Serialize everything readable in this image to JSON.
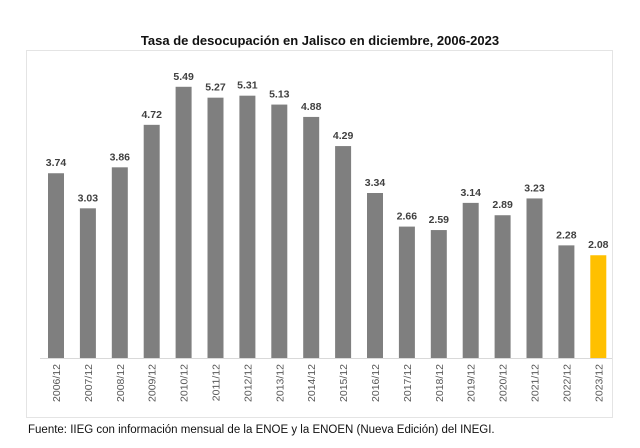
{
  "chart_data": {
    "type": "bar",
    "title": "Tasa de desocupación en Jalisco en diciembre, 2006-2023",
    "xlabel": "",
    "ylabel": "",
    "ylim": [
      0,
      5.8
    ],
    "grid": false,
    "categories": [
      "2006/12",
      "2007/12",
      "2008/12",
      "2009/12",
      "2010/12",
      "2011/12",
      "2012/12",
      "2013/12",
      "2014/12",
      "2015/12",
      "2016/12",
      "2017/12",
      "2018/12",
      "2019/12",
      "2020/12",
      "2021/12",
      "2022/12",
      "2023/12"
    ],
    "values": [
      3.74,
      3.03,
      3.86,
      4.72,
      5.49,
      5.27,
      5.31,
      5.13,
      4.88,
      4.29,
      3.34,
      2.66,
      2.59,
      3.14,
      2.89,
      3.23,
      2.28,
      2.08
    ],
    "data_labels": [
      "3.74",
      "3.03",
      "3.86",
      "4.72",
      "5.49",
      "5.27",
      "5.31",
      "5.13",
      "4.88",
      "4.29",
      "3.34",
      "2.66",
      "2.59",
      "3.14",
      "2.89",
      "3.23",
      "2.28",
      "2.08"
    ],
    "highlight_index": 17,
    "colors": {
      "bar": "#7f7f7f",
      "highlight": "#ffc000",
      "axis": "#d9d9d9"
    }
  },
  "source": "Fuente: IIEG con información mensual de la ENOE y la ENOEN (Nueva Edición) del INEGI."
}
